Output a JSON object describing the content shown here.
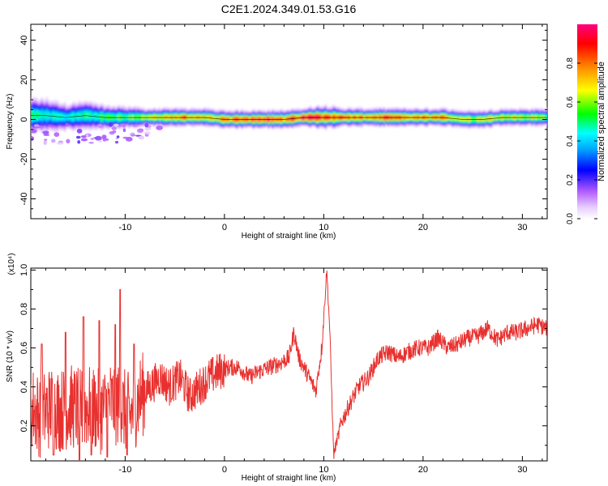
{
  "figure_title": "C2E1.2024.349.01.53.G16",
  "chart_data": [
    {
      "type": "heatmap",
      "title": "",
      "xlabel": "Height of straight line (km)",
      "ylabel": "Frequency (Hz)",
      "xlim": [
        -19.5,
        32.5
      ],
      "ylim": [
        -50,
        48
      ],
      "xticks": [
        -10,
        0,
        10,
        20,
        30
      ],
      "yticks": [
        -40,
        -20,
        0,
        20,
        40
      ],
      "xtick_labels": [
        "-10",
        "0",
        "10",
        "20",
        "30"
      ],
      "ytick_labels": [
        "-40",
        "-20",
        "0",
        "20",
        "40"
      ],
      "colorbar": {
        "label": "Normalized spectral amplitude",
        "range": [
          0,
          1
        ],
        "ticks": [
          0.0,
          0.2,
          0.4,
          0.6,
          0.8
        ],
        "tick_labels": [
          "0.0",
          "0.2",
          "0.4",
          "0.6",
          "0.8"
        ]
      },
      "ridge": {
        "x": [
          -19.5,
          -18,
          -16,
          -14,
          -12,
          -10,
          -8,
          -6,
          -4,
          -2,
          0,
          2,
          4,
          6,
          8,
          10,
          12,
          14,
          16,
          18,
          20,
          22,
          24,
          26,
          28,
          30,
          32.5
        ],
        "freq": [
          2,
          2,
          1,
          2,
          1,
          1,
          1,
          1,
          1,
          1,
          0,
          0,
          0,
          0,
          1,
          1,
          1,
          1,
          1,
          1,
          1,
          1,
          0,
          0,
          1,
          1,
          1
        ],
        "amplitude": [
          0.5,
          0.45,
          0.45,
          0.5,
          0.55,
          0.55,
          0.65,
          0.7,
          0.8,
          0.7,
          0.75,
          0.9,
          0.95,
          0.8,
          0.95,
          0.9,
          0.85,
          0.75,
          0.85,
          0.8,
          0.75,
          0.75,
          0.7,
          0.7,
          0.7,
          0.65,
          0.6
        ],
        "halfwidth": [
          6,
          6,
          5,
          5,
          4,
          4,
          3,
          3,
          3,
          3,
          3,
          3,
          3,
          3,
          3,
          4,
          3,
          3,
          3,
          3,
          3,
          3,
          3,
          3,
          3,
          3,
          3
        ]
      },
      "grid": false
    },
    {
      "type": "line",
      "title": "",
      "xlabel": "Height of straight line (km)",
      "ylabel": "SNR (10 * v/v)",
      "y_multiplier_label": "(x10⁴)",
      "xlim": [
        -19.5,
        32.5
      ],
      "ylim": [
        0.02,
        1.01
      ],
      "xticks": [
        -10,
        0,
        10,
        20,
        30
      ],
      "yticks": [
        0.2,
        0.4,
        0.6,
        0.8,
        1.0
      ],
      "xtick_labels": [
        "-10",
        "0",
        "10",
        "20",
        "30"
      ],
      "ytick_labels": [
        "0.2",
        "0.4",
        "0.6",
        "0.8",
        "1.0"
      ],
      "color": "#e8312f",
      "series": [
        {
          "x": [
            -19.5,
            -18.5,
            -17.5,
            -16.5,
            -15.5,
            -14.5,
            -13.5,
            -12.5,
            -11.5,
            -10.5,
            -9.5,
            -8.5,
            -7.5,
            -6.5,
            -5.5,
            -4.5,
            -3.5,
            -2.5,
            -1.5,
            -0.5,
            0.5,
            1.5,
            2.5,
            3.5,
            4.5,
            5.5,
            6.5,
            7.0,
            7.5,
            8.5,
            9.2,
            9.8,
            10.3,
            10.6,
            11.0,
            11.3,
            11.8,
            12.5,
            13.5,
            14.5,
            15.5,
            16.5,
            17.5,
            18.5,
            19.5,
            20.5,
            21.5,
            22.5,
            23.5,
            24.5,
            25.5,
            26.5,
            27.5,
            28.5,
            29.5,
            30.5,
            31.5,
            32.5
          ],
          "values": [
            0.3,
            0.25,
            0.3,
            0.28,
            0.3,
            0.28,
            0.3,
            0.27,
            0.32,
            0.3,
            0.25,
            0.35,
            0.4,
            0.45,
            0.4,
            0.45,
            0.35,
            0.4,
            0.45,
            0.48,
            0.5,
            0.5,
            0.45,
            0.48,
            0.5,
            0.52,
            0.55,
            0.68,
            0.55,
            0.45,
            0.38,
            0.6,
            1.0,
            0.7,
            0.05,
            0.12,
            0.22,
            0.3,
            0.4,
            0.45,
            0.55,
            0.58,
            0.55,
            0.58,
            0.6,
            0.6,
            0.65,
            0.6,
            0.62,
            0.65,
            0.66,
            0.7,
            0.64,
            0.68,
            0.68,
            0.7,
            0.72,
            0.7
          ]
        }
      ],
      "spikes": [
        {
          "x": -18.4,
          "value": 0.62
        },
        {
          "x": -17.2,
          "value": 0.05
        },
        {
          "x": -16.0,
          "value": 0.68
        },
        {
          "x": -14.6,
          "value": 0.02
        },
        {
          "x": -14.2,
          "value": 0.76
        },
        {
          "x": -13.4,
          "value": 0.05
        },
        {
          "x": -12.6,
          "value": 0.74
        },
        {
          "x": -11.8,
          "value": 0.04
        },
        {
          "x": -11.0,
          "value": 0.72
        },
        {
          "x": -10.5,
          "value": 0.9
        },
        {
          "x": -9.8,
          "value": 0.05
        },
        {
          "x": -9.1,
          "value": 0.62
        }
      ],
      "grid": false
    }
  ]
}
